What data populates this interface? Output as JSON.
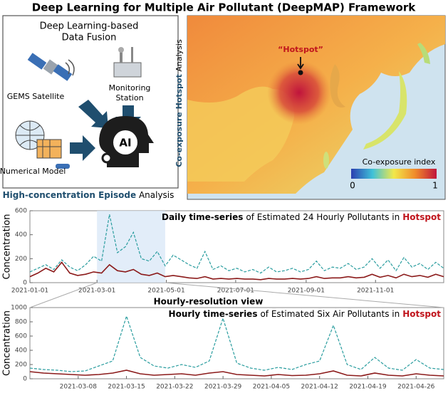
{
  "title": "Deep Learning for Multiple Air Pollutant (DeepMAP) Framework",
  "diagram": {
    "heading": [
      "Deep Learning-based",
      "Data Fusion"
    ],
    "satellite": "GEMS Satellite",
    "station": [
      "Monitoring",
      "Station"
    ],
    "model": "Numerical Model",
    "ai": "AI",
    "side_label": [
      "Co-exposure Hotspot",
      "Analysis"
    ],
    "bottom_label": [
      "High-concentration Episode",
      "Analysis"
    ]
  },
  "map": {
    "hotspot_label": "“Hotspot”",
    "colorbar": {
      "label": "Co-exposure index",
      "min": 0,
      "max": 1
    }
  },
  "chart_data": [
    {
      "type": "line",
      "title": [
        "Daily time-series",
        "of Estimated 24 Hourly Pollutants in",
        "Hotspot"
      ],
      "ylabel": "Concentration",
      "x": [
        "2021-01-01",
        "2021-01-08",
        "2021-01-15",
        "2021-01-22",
        "2021-01-29",
        "2021-02-05",
        "2021-02-12",
        "2021-02-19",
        "2021-02-26",
        "2021-03-05",
        "2021-03-12",
        "2021-03-19",
        "2021-03-26",
        "2021-04-02",
        "2021-04-09",
        "2021-04-16",
        "2021-04-23",
        "2021-04-30",
        "2021-05-07",
        "2021-05-14",
        "2021-05-21",
        "2021-05-28",
        "2021-06-04",
        "2021-06-11",
        "2021-06-18",
        "2021-06-25",
        "2021-07-02",
        "2021-07-09",
        "2021-07-16",
        "2021-07-23",
        "2021-07-30",
        "2021-08-06",
        "2021-08-13",
        "2021-08-20",
        "2021-08-27",
        "2021-09-03",
        "2021-09-10",
        "2021-09-17",
        "2021-09-24",
        "2021-10-01",
        "2021-10-08",
        "2021-10-15",
        "2021-10-22",
        "2021-10-29",
        "2021-11-05",
        "2021-11-12",
        "2021-11-19",
        "2021-11-26",
        "2021-12-03",
        "2021-12-10",
        "2021-12-17",
        "2021-12-24",
        "2021-12-31"
      ],
      "xlim": [
        "2021-01-01",
        "2021-12-31"
      ],
      "xticks": [
        "2021-01-01",
        "2021-03-01",
        "2021-05-01",
        "2021-07-01",
        "2021-09-01",
        "2021-11-01"
      ],
      "ylim": [
        0,
        600
      ],
      "yticks": [
        0,
        200,
        400,
        600
      ],
      "highlight": [
        "2021-03-01",
        "2021-04-30"
      ],
      "series": [
        {
          "color": "#2a9d9f",
          "dashed": true,
          "values": [
            90,
            120,
            150,
            110,
            190,
            130,
            100,
            150,
            220,
            180,
            570,
            250,
            300,
            420,
            200,
            180,
            260,
            140,
            230,
            190,
            150,
            120,
            260,
            110,
            140,
            100,
            120,
            90,
            110,
            80,
            130,
            90,
            100,
            120,
            90,
            110,
            180,
            100,
            130,
            120,
            160,
            110,
            130,
            200,
            120,
            190,
            100,
            210,
            130,
            160,
            110,
            170,
            120
          ]
        },
        {
          "color": "#8b1a1a",
          "dashed": false,
          "values": [
            50,
            80,
            120,
            90,
            170,
            80,
            60,
            70,
            90,
            80,
            150,
            100,
            90,
            110,
            70,
            60,
            80,
            50,
            60,
            50,
            40,
            35,
            50,
            30,
            35,
            30,
            35,
            30,
            30,
            25,
            35,
            30,
            30,
            35,
            30,
            35,
            50,
            35,
            40,
            40,
            50,
            40,
            45,
            70,
            45,
            60,
            40,
            70,
            50,
            60,
            45,
            70,
            50
          ]
        }
      ]
    },
    {
      "type": "line",
      "subtitle": "Hourly-resolution view",
      "title": [
        "Hourly time-series",
        "of Estimated Six Air Pollutants in",
        "Hotspot"
      ],
      "ylabel": "Concentration",
      "x": [
        "2021-03-01",
        "2021-03-03",
        "2021-03-05",
        "2021-03-07",
        "2021-03-09",
        "2021-03-11",
        "2021-03-13",
        "2021-03-15",
        "2021-03-17",
        "2021-03-19",
        "2021-03-21",
        "2021-03-23",
        "2021-03-25",
        "2021-03-27",
        "2021-03-29",
        "2021-03-31",
        "2021-04-02",
        "2021-04-04",
        "2021-04-06",
        "2021-04-08",
        "2021-04-10",
        "2021-04-12",
        "2021-04-14",
        "2021-04-16",
        "2021-04-18",
        "2021-04-20",
        "2021-04-22",
        "2021-04-24",
        "2021-04-26",
        "2021-04-28",
        "2021-04-30"
      ],
      "xlim": [
        "2021-03-01",
        "2021-04-30"
      ],
      "xticks": [
        "2021-03-08",
        "2021-03-15",
        "2021-03-22",
        "2021-03-29",
        "2021-04-05",
        "2021-04-12",
        "2021-04-19",
        "2021-04-26"
      ],
      "ylim": [
        0,
        1000
      ],
      "yticks": [
        0,
        200,
        400,
        600,
        800,
        1000
      ],
      "series": [
        {
          "color": "#2a9d9f",
          "dashed": true,
          "values": [
            150,
            130,
            120,
            100,
            110,
            180,
            250,
            880,
            300,
            180,
            150,
            200,
            160,
            250,
            850,
            220,
            150,
            120,
            160,
            130,
            200,
            250,
            750,
            200,
            130,
            300,
            150,
            120,
            270,
            150,
            130
          ]
        },
        {
          "color": "#8b1a1a",
          "dashed": false,
          "values": [
            100,
            80,
            70,
            60,
            50,
            60,
            80,
            120,
            70,
            50,
            60,
            70,
            50,
            80,
            100,
            60,
            50,
            40,
            60,
            45,
            50,
            70,
            110,
            50,
            40,
            80,
            50,
            40,
            70,
            50,
            40
          ]
        }
      ]
    }
  ]
}
